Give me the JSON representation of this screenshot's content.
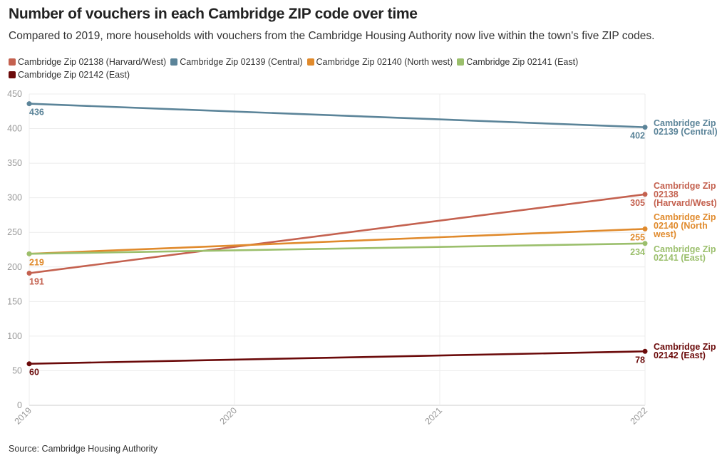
{
  "chart_data": {
    "type": "line",
    "title": "Number of vouchers in each Cambridge ZIP code over time",
    "subtitle": "Compared to 2019, more households with vouchers from the Cambridge Housing Authority now live within the town's five ZIP codes.",
    "source": "Source: Cambridge Housing Authority",
    "x": [
      "2019",
      "2020",
      "2021",
      "2022"
    ],
    "ylim": [
      0,
      450
    ],
    "yticks": [
      "0",
      "50",
      "100",
      "150",
      "200",
      "250",
      "300",
      "350",
      "400",
      "450"
    ],
    "grid": true,
    "legend_placement": "top-left",
    "series": [
      {
        "name": "Cambridge Zip 02138 (Harvard/West)",
        "color": "#c4614f",
        "points": [
          [
            2019,
            191
          ],
          [
            2022,
            305
          ]
        ],
        "labels": [
          "191",
          "305"
        ]
      },
      {
        "name": "Cambridge Zip 02139 (Central)",
        "color": "#5b8499",
        "points": [
          [
            2019,
            436
          ],
          [
            2022,
            402
          ]
        ],
        "labels": [
          "436",
          "402"
        ]
      },
      {
        "name": "Cambridge Zip 02140 (North west)",
        "color": "#e08a2c",
        "points": [
          [
            2019,
            219
          ],
          [
            2022,
            255
          ]
        ],
        "labels": [
          "219",
          "255"
        ]
      },
      {
        "name": "Cambridge Zip 02141 (East)",
        "color": "#9bbf6c",
        "points": [
          [
            2019,
            219
          ],
          [
            2022,
            234
          ]
        ],
        "labels": [
          "",
          "234"
        ]
      },
      {
        "name": "Cambridge Zip 02142 (East)",
        "color": "#6b0a0a",
        "points": [
          [
            2019,
            60
          ],
          [
            2022,
            78
          ]
        ],
        "labels": [
          "60",
          "78"
        ]
      }
    ]
  }
}
